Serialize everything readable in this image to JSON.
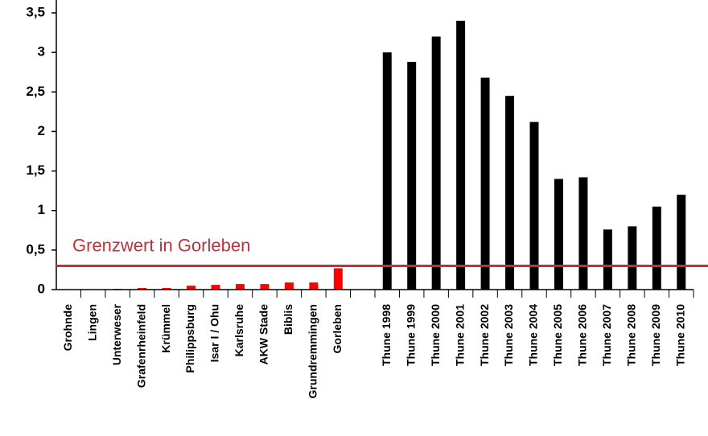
{
  "chart_data": {
    "type": "bar",
    "categories": [
      "Grohnde",
      "Lingen",
      "Unterweser",
      "Grafenrheinfeld",
      "Krümmel",
      "Philippsburg",
      "Isar I / Ohu",
      "Karlsruhe",
      "AKW Stade",
      "Biblis",
      "Grundremmingen",
      "Gorleben",
      null,
      "Thune 1998",
      "Thune 1999",
      "Thune 2000",
      "Thune 2001",
      "Thune 2002",
      "Thune 2003",
      "Thune 2004",
      "Thune 2005",
      "Thune 2006",
      "Thune 2007",
      "Thune 2008",
      "Thune 2009",
      "Thune 2010"
    ],
    "values": [
      0,
      0,
      0.01,
      0.02,
      0.02,
      0.05,
      0.06,
      0.07,
      0.07,
      0.09,
      0.09,
      0.27,
      null,
      3.0,
      2.88,
      3.2,
      3.4,
      2.68,
      2.45,
      2.12,
      1.4,
      1.42,
      0.76,
      0.8,
      1.05,
      1.2
    ],
    "colors": [
      "#ff0000",
      "#ff0000",
      "#ff0000",
      "#ff0000",
      "#ff0000",
      "#ff0000",
      "#ff0000",
      "#ff0000",
      "#ff0000",
      "#ff0000",
      "#ff0000",
      "#ff0000",
      null,
      "#000000",
      "#000000",
      "#000000",
      "#000000",
      "#000000",
      "#000000",
      "#000000",
      "#000000",
      "#000000",
      "#000000",
      "#000000",
      "#000000",
      "#000000"
    ],
    "ylim": [
      0,
      3.6
    ],
    "yticks": [
      0,
      {
        "value": 0.5,
        "label": "0,5"
      },
      1,
      {
        "value": 1.5,
        "label": "1,5"
      },
      2,
      {
        "value": 2.5,
        "label": "2,5"
      },
      3,
      {
        "value": 3.5,
        "label": "3,5"
      }
    ],
    "reference_line": {
      "value": 0.3,
      "label": "Grenzwert in Gorleben",
      "color": "#c0323a"
    }
  }
}
